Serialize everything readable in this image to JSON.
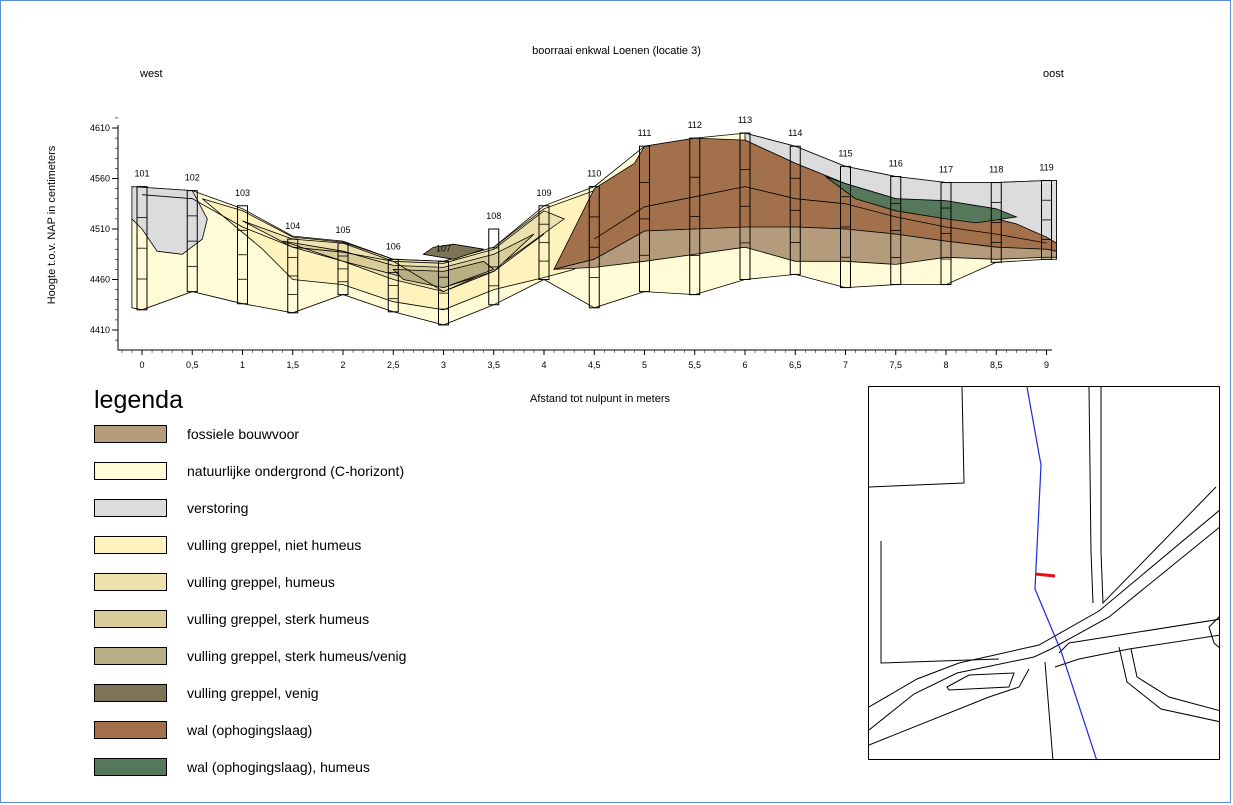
{
  "title": "boorraai enkwal Loenen (locatie 3)",
  "west_label": "west",
  "east_label": "oost",
  "y_axis": {
    "label": "Hoogte t.o.v. NAP in centimeters",
    "ticks": [
      "4410",
      "4460",
      "4510",
      "4560",
      "4610"
    ],
    "range": [
      4400,
      4620
    ]
  },
  "x_axis": {
    "label": "Afstand tot nulpunt in meters",
    "ticks": [
      "0",
      "0,5",
      "1",
      "1,5",
      "2",
      "2,5",
      "3",
      "3,5",
      "4",
      "4,5",
      "5",
      "5,5",
      "6",
      "6,5",
      "7",
      "7,5",
      "8",
      "8,5",
      "9"
    ],
    "range": [
      -0.25,
      9.1
    ]
  },
  "boreholes": [
    "101",
    "102",
    "103",
    "104",
    "105",
    "106",
    "107",
    "108",
    "109",
    "110",
    "111",
    "112",
    "113",
    "114",
    "115",
    "116",
    "117",
    "118",
    "119"
  ],
  "legend": {
    "title": "legenda",
    "items": [
      {
        "label": "fossiele bouwvoor",
        "color": "#b39b7c"
      },
      {
        "label": "natuurlijke ondergrond (C-horizont)",
        "color": "#fffbd6"
      },
      {
        "label": "verstoring",
        "color": "#dcdcdc"
      },
      {
        "label": "vulling greppel, niet humeus",
        "color": "#fff3bd"
      },
      {
        "label": "vulling greppel, humeus",
        "color": "#ede2ae"
      },
      {
        "label": "vulling greppel, sterk humeus",
        "color": "#d8cc98"
      },
      {
        "label": "vulling greppel, sterk humeus/venig",
        "color": "#b9ae84"
      },
      {
        "label": "vulling greppel, venig",
        "color": "#7d7356"
      },
      {
        "label": "wal (ophogingslaag)",
        "color": "#a2714c"
      },
      {
        "label": "wal (ophogingslaag), humeus",
        "color": "#55785a"
      }
    ]
  }
}
